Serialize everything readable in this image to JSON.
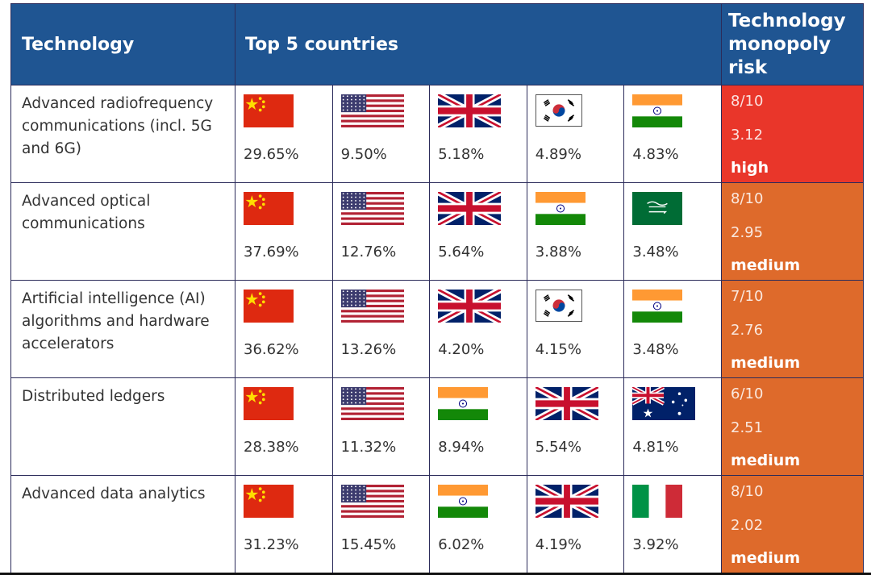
{
  "header": {
    "technology": "Technology",
    "top_countries": "Top 5 countries",
    "risk": "Technology monopoly risk"
  },
  "rows": [
    {
      "technology": "Advanced radiofrequency communications (incl. 5G and 6G)",
      "countries": [
        {
          "flag": "china-flag-icon",
          "pct": "29.65%"
        },
        {
          "flag": "usa-flag-icon",
          "pct": "9.50%"
        },
        {
          "flag": "uk-flag-icon",
          "pct": "5.18%"
        },
        {
          "flag": "south-korea-flag-icon",
          "pct": "4.89%"
        },
        {
          "flag": "india-flag-icon",
          "pct": "4.83%"
        }
      ],
      "risk_score": "8/10",
      "risk_value": "3.12",
      "risk_level": "high"
    },
    {
      "technology": "Advanced optical communications",
      "countries": [
        {
          "flag": "china-flag-icon",
          "pct": "37.69%"
        },
        {
          "flag": "usa-flag-icon",
          "pct": "12.76%"
        },
        {
          "flag": "uk-flag-icon",
          "pct": "5.64%"
        },
        {
          "flag": "india-flag-icon",
          "pct": "3.88%"
        },
        {
          "flag": "saudi-arabia-flag-icon",
          "pct": "3.48%"
        }
      ],
      "risk_score": "8/10",
      "risk_value": "2.95",
      "risk_level": "medium"
    },
    {
      "technology": "Artificial intelligence (AI) algorithms and hardware accelerators",
      "countries": [
        {
          "flag": "china-flag-icon",
          "pct": "36.62%"
        },
        {
          "flag": "usa-flag-icon",
          "pct": "13.26%"
        },
        {
          "flag": "uk-flag-icon",
          "pct": "4.20%"
        },
        {
          "flag": "south-korea-flag-icon",
          "pct": "4.15%"
        },
        {
          "flag": "india-flag-icon",
          "pct": "3.48%"
        }
      ],
      "risk_score": "7/10",
      "risk_value": "2.76",
      "risk_level": "medium"
    },
    {
      "technology": "Distributed ledgers",
      "countries": [
        {
          "flag": "china-flag-icon",
          "pct": "28.38%"
        },
        {
          "flag": "usa-flag-icon",
          "pct": "11.32%"
        },
        {
          "flag": "india-flag-icon",
          "pct": "8.94%"
        },
        {
          "flag": "uk-flag-icon",
          "pct": "5.54%"
        },
        {
          "flag": "australia-flag-icon",
          "pct": "4.81%"
        }
      ],
      "risk_score": "6/10",
      "risk_value": "2.51",
      "risk_level": "medium"
    },
    {
      "technology": "Advanced data analytics",
      "countries": [
        {
          "flag": "china-flag-icon",
          "pct": "31.23%"
        },
        {
          "flag": "usa-flag-icon",
          "pct": "15.45%"
        },
        {
          "flag": "india-flag-icon",
          "pct": "6.02%"
        },
        {
          "flag": "uk-flag-icon",
          "pct": "4.19%"
        },
        {
          "flag": "italy-flag-icon",
          "pct": "3.92%"
        }
      ],
      "risk_score": "8/10",
      "risk_value": "2.02",
      "risk_level": "medium"
    }
  ],
  "colors": {
    "header_bg": "#1f5592",
    "risk_high": "#e9362a",
    "risk_medium": "#de6a2b"
  }
}
